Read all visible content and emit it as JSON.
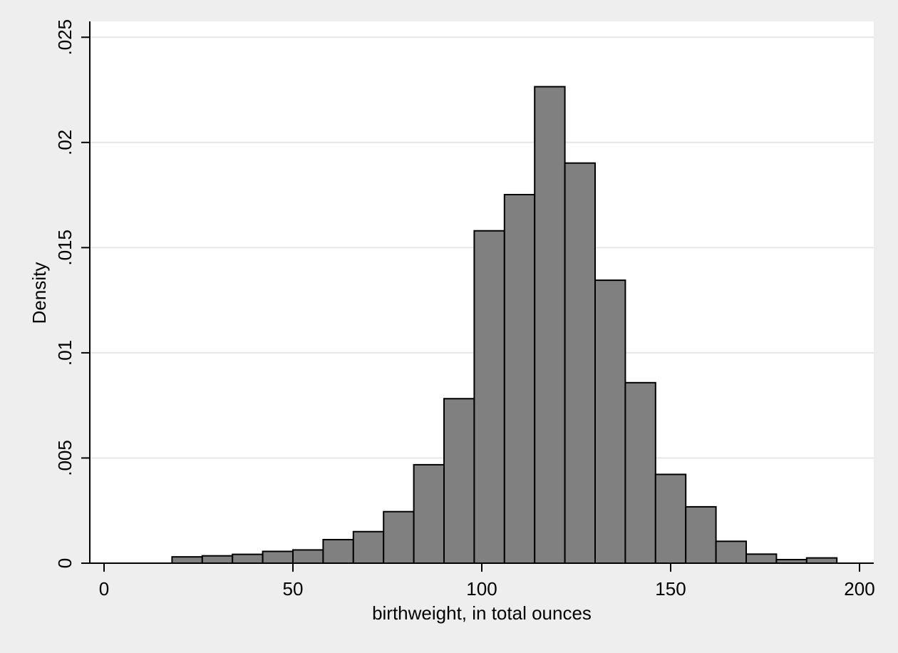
{
  "chart_data": {
    "type": "bar",
    "xlabel": "birthweight, in total ounces",
    "ylabel": "Density",
    "xlim": [
      0,
      200
    ],
    "ylim": [
      0,
      0.025
    ],
    "x_ticks": [
      {
        "value": 0,
        "label": "0"
      },
      {
        "value": 50,
        "label": "50"
      },
      {
        "value": 100,
        "label": "100"
      },
      {
        "value": 150,
        "label": "150"
      },
      {
        "value": 200,
        "label": "200"
      }
    ],
    "y_ticks": [
      {
        "value": 0,
        "label": "0"
      },
      {
        "value": 0.005,
        "label": ".005"
      },
      {
        "value": 0.01,
        "label": ".01"
      },
      {
        "value": 0.015,
        "label": ".015"
      },
      {
        "value": 0.02,
        "label": ".02"
      },
      {
        "value": 0.025,
        "label": ".025"
      }
    ],
    "grid": true,
    "legend": "none",
    "bin_edges": [
      18,
      26,
      34,
      42,
      50,
      58,
      66,
      74,
      82,
      90,
      98,
      106,
      114,
      122,
      130,
      138,
      146,
      154,
      162,
      170,
      178,
      186,
      194
    ],
    "values": [
      0.0003,
      0.00035,
      0.00042,
      0.00056,
      0.00063,
      0.00112,
      0.0015,
      0.00245,
      0.00468,
      0.00782,
      0.0158,
      0.01752,
      0.02265,
      0.01902,
      0.01345,
      0.00858,
      0.00422,
      0.00268,
      0.00104,
      0.00043,
      0.00017,
      0.00025
    ],
    "colors": {
      "bar_fill": "#808080",
      "bar_stroke": "#000000",
      "grid": "#e6e6e6",
      "plot_bg": "#ffffff",
      "page_bg": "#eeeeee"
    }
  }
}
